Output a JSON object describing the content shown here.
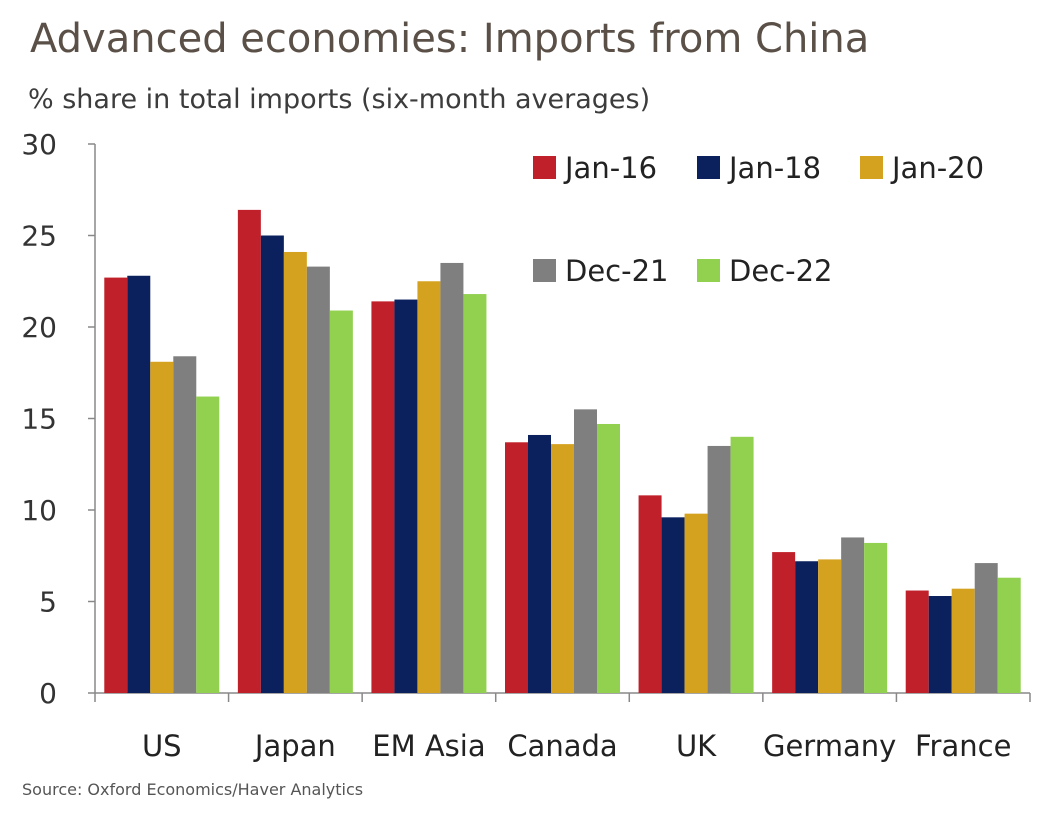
{
  "chart_data": {
    "type": "bar",
    "title": "Advanced economies: Imports from China",
    "subtitle": "% share in total imports (six-month averages)",
    "source": "Source: Oxford Economics/Haver Analytics",
    "categories": [
      "US",
      "Japan",
      "EM Asia",
      "Canada",
      "UK",
      "Germany",
      "France"
    ],
    "series": [
      {
        "name": "Jan-16",
        "color": "#c0202a",
        "values": [
          22.7,
          26.4,
          21.4,
          13.7,
          10.8,
          7.7,
          5.6
        ]
      },
      {
        "name": "Jan-18",
        "color": "#0b215e",
        "values": [
          22.8,
          25.0,
          21.5,
          14.1,
          9.6,
          7.2,
          5.3
        ]
      },
      {
        "name": "Jan-20",
        "color": "#d5a220",
        "values": [
          18.1,
          24.1,
          22.5,
          13.6,
          9.8,
          7.3,
          5.7
        ]
      },
      {
        "name": "Dec-21",
        "color": "#7f7f7f",
        "values": [
          18.4,
          23.3,
          23.5,
          15.5,
          13.5,
          8.5,
          7.1
        ]
      },
      {
        "name": "Dec-22",
        "color": "#92d050",
        "values": [
          16.2,
          20.9,
          21.8,
          14.7,
          14.0,
          8.2,
          6.3
        ]
      }
    ],
    "yticks": [
      0,
      5,
      10,
      15,
      20,
      25,
      30
    ],
    "ylim": [
      0,
      30
    ],
    "xlabel": "",
    "ylabel": "",
    "grid": false,
    "legend_position": "top-right"
  }
}
